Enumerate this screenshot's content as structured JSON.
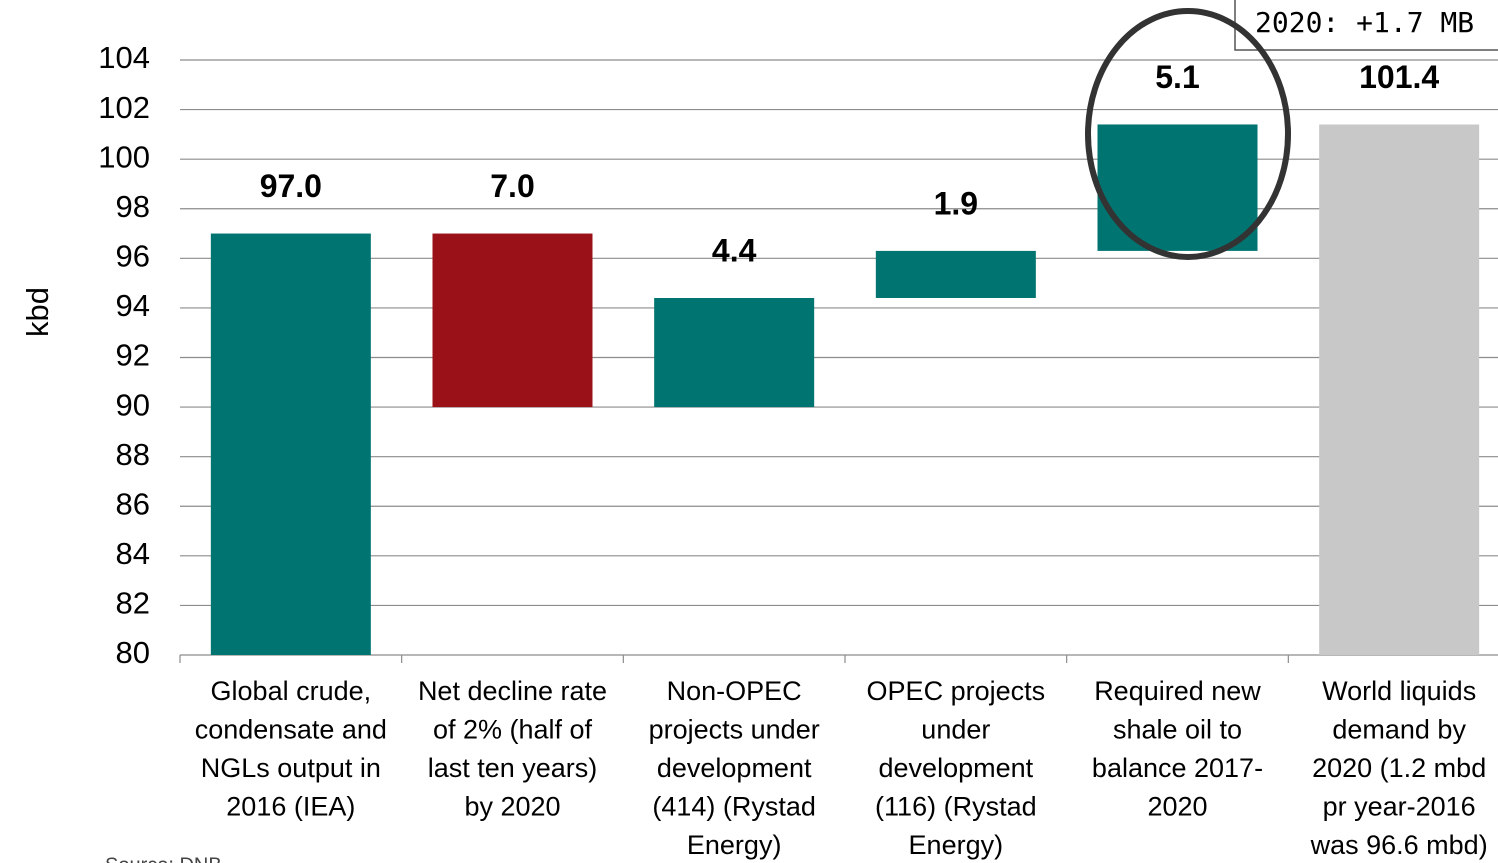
{
  "chart_data": {
    "type": "waterfall",
    "y_label": "kbd",
    "categories": [
      "Global crude,\ncondensate and\nNGLs output in\n2016 (IEA)",
      "Net decline rate\nof 2% (half of\nlast ten years)\nby 2020",
      "Non-OPEC\nprojects under\ndevelopment\n(414) (Rystad\nEnergy)",
      "OPEC projects\nunder\ndevelopment\n(116) (Rystad\nEnergy)",
      "Required new\nshale oil to\nbalance 2017-\n2020",
      "World liquids\ndemand by\n2020 (1.2 mbd\npr year-2016\nwas 96.6 mbd)"
    ],
    "values": [
      97.0,
      7.0,
      4.4,
      1.9,
      5.1,
      101.4
    ],
    "value_labels": [
      "97.0",
      "7.0",
      "4.4",
      "1.9",
      "5.1",
      "101.4"
    ],
    "measure": [
      "total",
      "decrease",
      "increase",
      "increase",
      "increase",
      "total"
    ],
    "colors": {
      "total": "#007470",
      "decrease": "#9b1118",
      "increase": "#007470",
      "final": "#c8c8c8"
    },
    "ylim": [
      80,
      104
    ],
    "yticks": [
      80,
      82,
      84,
      86,
      88,
      90,
      92,
      94,
      96,
      98,
      100,
      102,
      104
    ],
    "grid": true,
    "annotation": "2020: +1.7 MB",
    "source": "Source: DNB"
  }
}
